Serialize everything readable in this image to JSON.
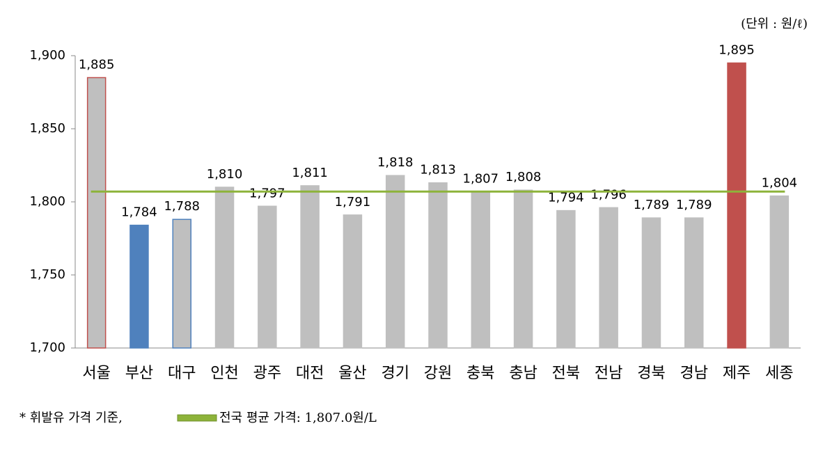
{
  "chart_data": {
    "type": "bar",
    "unit_label": "(단위 : 원/ℓ)",
    "categories": [
      "서울",
      "부산",
      "대구",
      "인천",
      "광주",
      "대전",
      "울산",
      "경기",
      "강원",
      "충북",
      "충남",
      "전북",
      "전남",
      "경북",
      "경남",
      "제주",
      "세종"
    ],
    "values": [
      1885,
      1784,
      1788,
      1810,
      1797,
      1811,
      1791,
      1818,
      1813,
      1807,
      1808,
      1794,
      1796,
      1789,
      1789,
      1895,
      1804
    ],
    "value_labels": [
      "1,885",
      "1,784",
      "1,788",
      "1,810",
      "1,797",
      "1,811",
      "1,791",
      "1,818",
      "1,813",
      "1,807",
      "1,808",
      "1,794",
      "1,796",
      "1,789",
      "1,789",
      "1,895",
      "1,804"
    ],
    "colors": [
      "#bfbfbf",
      "#4f81bd",
      "#bfbfbf",
      "#bfbfbf",
      "#bfbfbf",
      "#bfbfbf",
      "#bfbfbf",
      "#bfbfbf",
      "#bfbfbf",
      "#bfbfbf",
      "#bfbfbf",
      "#bfbfbf",
      "#bfbfbf",
      "#bfbfbf",
      "#bfbfbf",
      "#c0504d",
      "#bfbfbf"
    ],
    "edgecolors": [
      "#c0504d",
      "#4f81bd",
      "#4f81bd",
      "#bfbfbf",
      "#bfbfbf",
      "#bfbfbf",
      "#bfbfbf",
      "#bfbfbf",
      "#bfbfbf",
      "#bfbfbf",
      "#bfbfbf",
      "#bfbfbf",
      "#bfbfbf",
      "#bfbfbf",
      "#bfbfbf",
      "#c0504d",
      "#bfbfbf"
    ],
    "ylim": [
      1700,
      1900
    ],
    "yticks": [
      {
        "value": 1700,
        "label": "1,700"
      },
      {
        "value": 1750,
        "label": "1,750"
      },
      {
        "value": 1800,
        "label": "1,800"
      },
      {
        "value": 1850,
        "label": "1,850"
      },
      {
        "value": 1900,
        "label": "1,900"
      }
    ],
    "reference_line": {
      "value": 1807.0,
      "color": "#8db33a",
      "label": "전국 평균 가격: 1,807.0원/L"
    },
    "note": "* 휘발유 가격 기준,"
  }
}
